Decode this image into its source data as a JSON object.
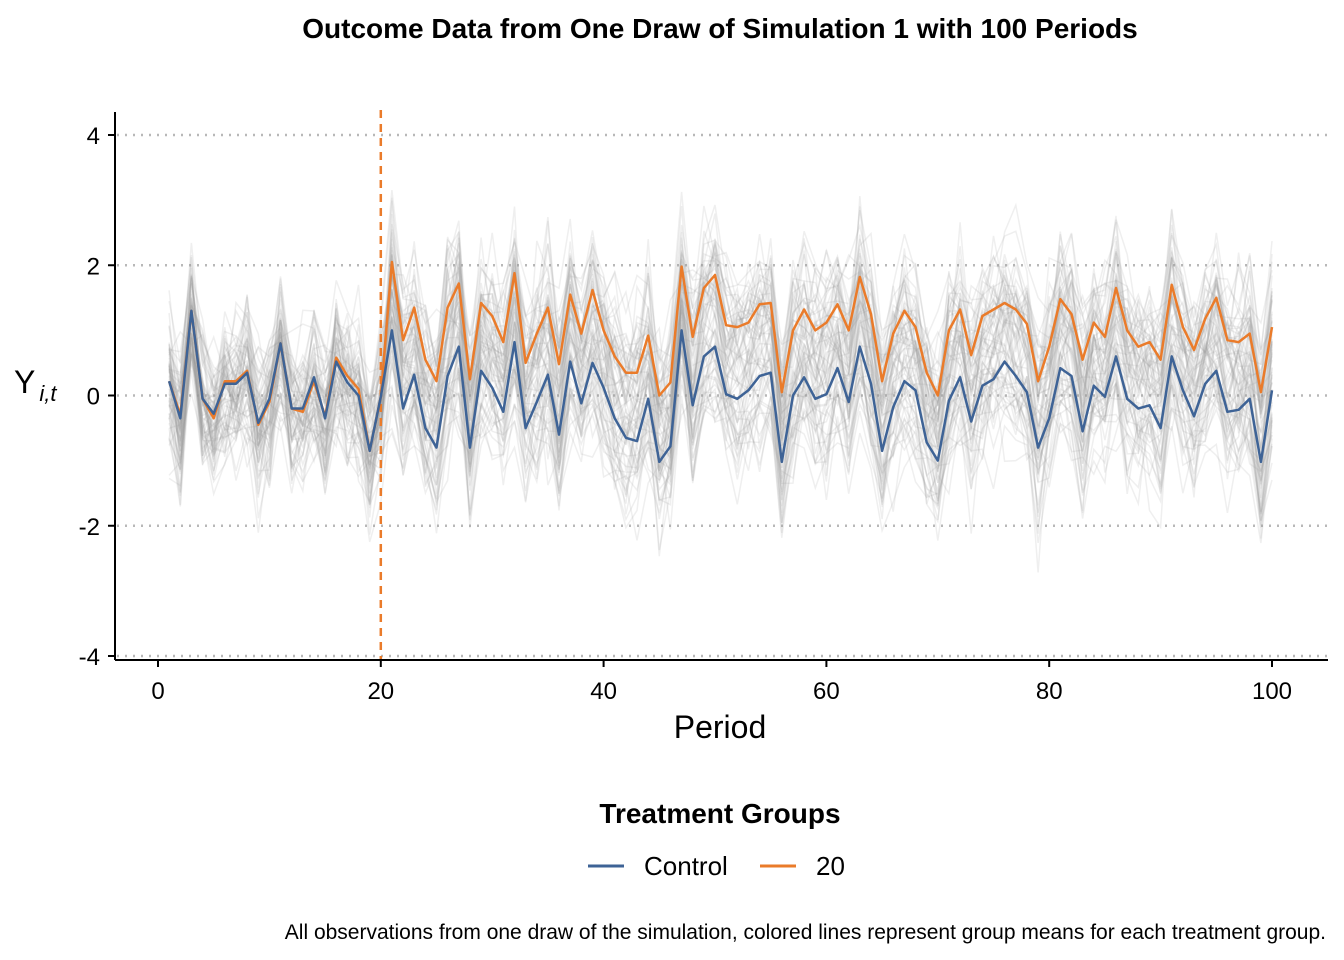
{
  "chart_data": {
    "type": "line",
    "title": "Outcome Data from One Draw of Simulation 1 with 100 Periods",
    "xlabel": "Period",
    "ylabel": "Y",
    "ylabel_subscript": "i,t",
    "xlim": [
      0,
      100
    ],
    "ylim": [
      -4,
      4
    ],
    "x_ticks": [
      "0",
      "20",
      "40",
      "60",
      "80",
      "100"
    ],
    "y_ticks": [
      "4",
      "2",
      "0",
      "-2",
      "-4"
    ],
    "treatment_period": 20,
    "legend_title": "Treatment Groups",
    "caption": "All observations from one draw of the simulation, colored lines represent group means for each treatment group.",
    "series": [
      {
        "name": "Control",
        "color": "#3e6396",
        "values": [
          0.22,
          -0.35,
          1.3,
          -0.05,
          -0.28,
          0.18,
          0.18,
          0.35,
          -0.42,
          -0.05,
          0.8,
          -0.2,
          -0.2,
          0.28,
          -0.35,
          0.52,
          0.2,
          0.0,
          -0.85,
          -0.02,
          1.0,
          -0.2,
          0.32,
          -0.5,
          -0.8,
          0.3,
          0.75,
          -0.8,
          0.38,
          0.12,
          -0.25,
          0.82,
          -0.5,
          -0.1,
          0.32,
          -0.6,
          0.52,
          -0.12,
          0.5,
          0.12,
          -0.35,
          -0.65,
          -0.7,
          -0.05,
          -1.02,
          -0.78,
          1.0,
          -0.15,
          0.6,
          0.75,
          0.02,
          -0.05,
          0.08,
          0.3,
          0.35,
          -1.02,
          0.0,
          0.28,
          -0.05,
          0.02,
          0.42,
          -0.1,
          0.75,
          0.18,
          -0.85,
          -0.18,
          0.22,
          0.08,
          -0.72,
          -1.0,
          -0.08,
          0.28,
          -0.4,
          0.15,
          0.25,
          0.52,
          0.3,
          0.05,
          -0.8,
          -0.35,
          0.42,
          0.3,
          -0.55,
          0.15,
          -0.02,
          0.6,
          -0.05,
          -0.2,
          -0.15,
          -0.5,
          0.6,
          0.08,
          -0.32,
          0.18,
          0.38,
          -0.25,
          -0.22,
          -0.05,
          -1.02,
          0.08
        ]
      },
      {
        "name": "20",
        "color": "#ea7b2a",
        "values": [
          0.22,
          -0.3,
          1.3,
          -0.05,
          -0.35,
          0.22,
          0.22,
          0.38,
          -0.45,
          -0.1,
          0.8,
          -0.2,
          -0.25,
          0.22,
          -0.32,
          0.58,
          0.3,
          0.1,
          -0.85,
          -0.02,
          2.05,
          0.85,
          1.35,
          0.55,
          0.22,
          1.35,
          1.72,
          0.25,
          1.42,
          1.22,
          0.82,
          1.88,
          0.5,
          0.95,
          1.35,
          0.48,
          1.55,
          0.95,
          1.62,
          1.0,
          0.6,
          0.35,
          0.35,
          0.92,
          0.0,
          0.2,
          1.98,
          0.9,
          1.65,
          1.85,
          1.08,
          1.05,
          1.12,
          1.4,
          1.42,
          0.05,
          1.0,
          1.32,
          1.0,
          1.12,
          1.4,
          1.0,
          1.82,
          1.25,
          0.22,
          0.95,
          1.3,
          1.05,
          0.35,
          0.0,
          1.0,
          1.32,
          0.62,
          1.22,
          1.32,
          1.42,
          1.32,
          1.1,
          0.22,
          0.75,
          1.48,
          1.25,
          0.55,
          1.12,
          0.9,
          1.65,
          1.0,
          0.75,
          0.82,
          0.55,
          1.7,
          1.05,
          0.7,
          1.18,
          1.5,
          0.85,
          0.82,
          0.95,
          0.05,
          1.05
        ]
      }
    ]
  }
}
